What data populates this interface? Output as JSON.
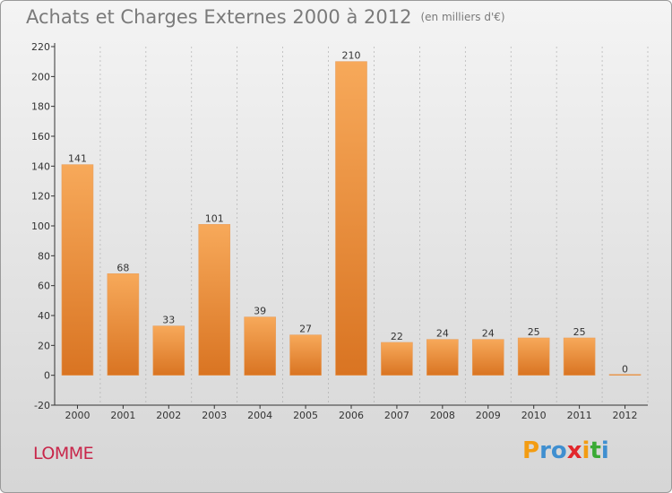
{
  "header": {
    "title": "Achats et Charges Externes 2000 à 2012",
    "unit": "(en milliers d'€)"
  },
  "footer": {
    "place": "LOMME",
    "brand_letters": [
      "P",
      "r",
      "o",
      "x",
      "i",
      "t",
      "i"
    ],
    "brand_colors": [
      "#f39c12",
      "#3f8fd0",
      "#3f8fd0",
      "#e2262b",
      "#f39c12",
      "#3aaa35",
      "#3f8fd0"
    ]
  },
  "colors": {
    "bar_light": "#f7a95a",
    "bar_dark": "#d97422",
    "axis": "#333333",
    "grid": "#b0b0b0"
  },
  "chart_data": {
    "type": "bar",
    "categories": [
      "2000",
      "2001",
      "2002",
      "2003",
      "2004",
      "2005",
      "2006",
      "2007",
      "2008",
      "2009",
      "2010",
      "2011",
      "2012"
    ],
    "values": [
      141,
      68,
      33,
      101,
      39,
      27,
      210,
      22,
      24,
      24,
      25,
      25,
      0
    ],
    "value_labels": [
      "141",
      "68",
      "33",
      "101",
      "39",
      "27",
      "210",
      "22",
      "24",
      "24",
      "25",
      "25",
      "0"
    ],
    "ylim": [
      -20,
      220
    ],
    "yticks": [
      -20,
      0,
      20,
      40,
      60,
      80,
      100,
      120,
      140,
      160,
      180,
      200,
      220
    ],
    "grid": "vertical dashed"
  }
}
